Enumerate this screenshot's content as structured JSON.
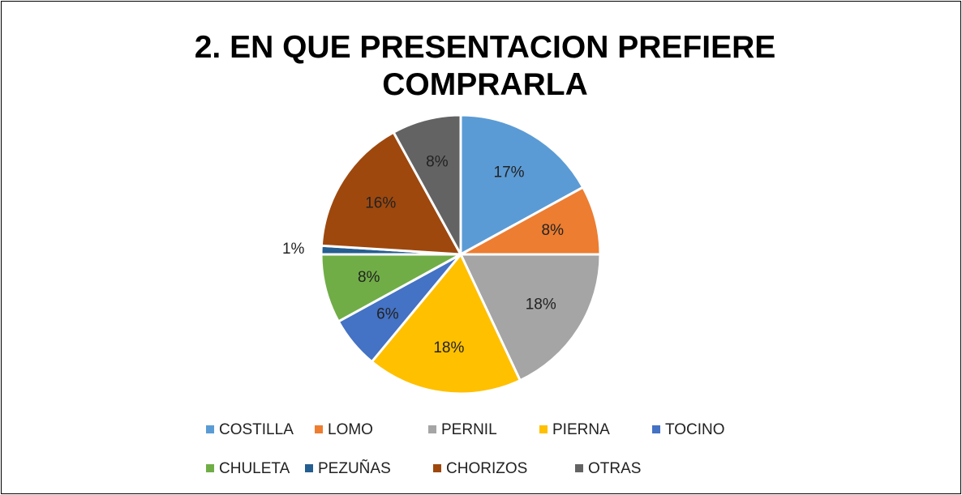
{
  "chart_data": {
    "type": "pie",
    "title": "2. EN QUE PRESENTACION PREFIERE COMPRARLA",
    "categories": [
      "COSTILLA",
      "LOMO",
      "PERNIL",
      "PIERNA",
      "TOCINO",
      "CHULETA",
      "PEZUÑAS",
      "CHORIZOS",
      "OTRAS"
    ],
    "values": [
      17,
      8,
      18,
      18,
      6,
      8,
      1,
      16,
      8
    ],
    "value_labels": [
      "17%",
      "8%",
      "18%",
      "18%",
      "6%",
      "8%",
      "1%",
      "16%",
      "8%"
    ],
    "colors": [
      "#5b9bd5",
      "#ed7d31",
      "#a5a5a5",
      "#ffc000",
      "#4472c4",
      "#70ad47",
      "#255e91",
      "#9e480e",
      "#636363"
    ],
    "legend": "bottom"
  }
}
